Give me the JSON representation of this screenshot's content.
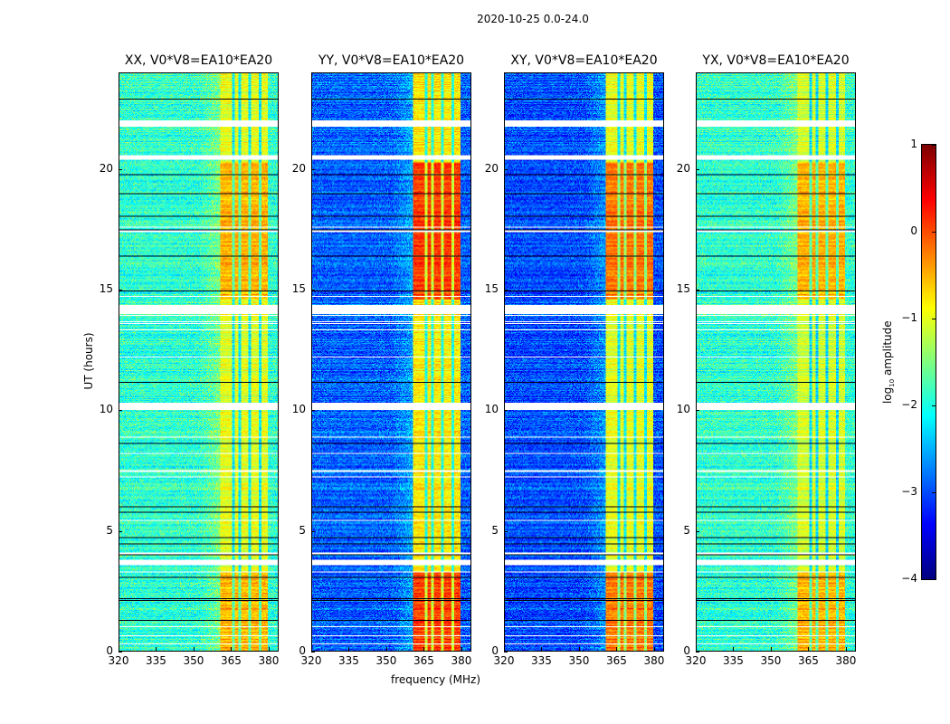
{
  "suptitle": "2020-10-25 0.0-24.0",
  "chart_data": {
    "type": "heatmap",
    "xlabel": "frequency (MHz)",
    "ylabel": "UT (hours)",
    "xlim": [
      320,
      384
    ],
    "ylim": [
      0,
      24
    ],
    "xticks": [
      320,
      335,
      350,
      365,
      380
    ],
    "yticks": [
      0,
      5,
      10,
      15,
      20
    ],
    "colormap": "jet",
    "colorbar": {
      "label": "log10 amplitude",
      "label_main": "log",
      "label_sub": "10",
      "label_rest": " amplitude",
      "range": [
        -4,
        1
      ],
      "ticks": [
        "1",
        "0",
        "−1",
        "−2",
        "−3",
        "−4"
      ],
      "tick_values": [
        1,
        0,
        -1,
        -2,
        -3,
        -4
      ]
    },
    "bright_band_mhz": [
      361,
      380
    ],
    "band_gaps_mhz": [
      366,
      368.5,
      372.5,
      377
    ],
    "flagged_hours": [
      [
        3.55,
        3.8
      ],
      [
        4.0,
        4.1
      ],
      [
        10.0,
        10.3
      ],
      [
        14.0,
        14.35
      ],
      [
        20.4,
        20.6
      ],
      [
        21.8,
        22.0
      ]
    ],
    "panels": [
      {
        "title": "XX, V0*V8=EA10*EA20",
        "background_level": -1.9,
        "band_level": -1.0,
        "strong_band_level": -0.5
      },
      {
        "title": "YY, V0*V8=EA10*EA20",
        "background_level": -2.9,
        "band_level": -0.8,
        "strong_band_level": 0.1
      },
      {
        "title": "XY, V0*V8=EA10*EA20",
        "background_level": -3.0,
        "band_level": -1.0,
        "strong_band_level": -0.2
      },
      {
        "title": "YX, V0*V8=EA10*EA20",
        "background_level": -1.9,
        "band_level": -1.1,
        "strong_band_level": -0.5
      }
    ]
  }
}
